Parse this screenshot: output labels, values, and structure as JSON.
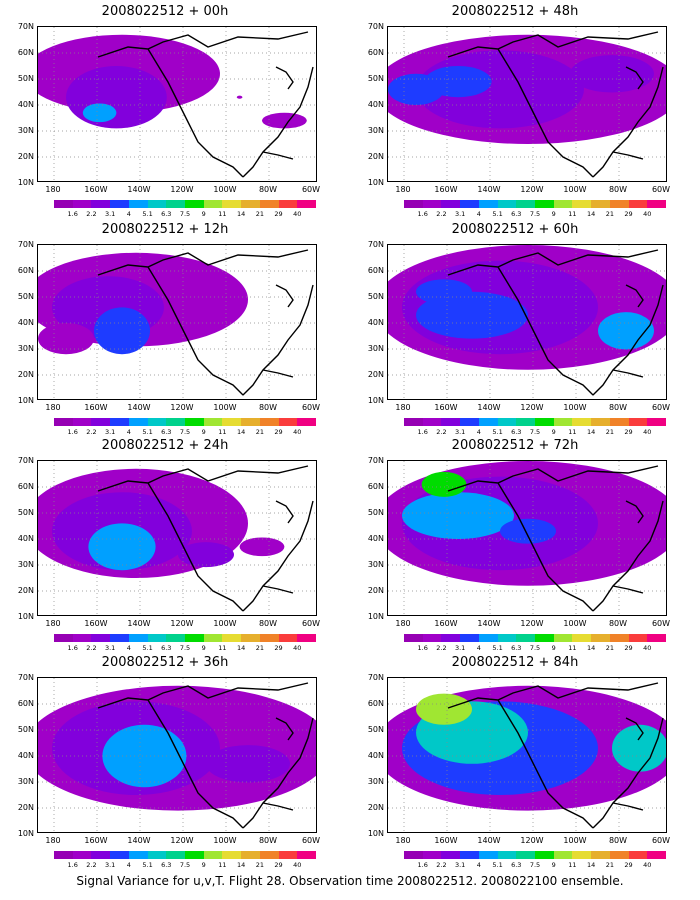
{
  "panels": [
    {
      "title": "2008022512 + 00h"
    },
    {
      "title": "2008022512 + 48h"
    },
    {
      "title": "2008022512 + 12h"
    },
    {
      "title": "2008022512 + 60h"
    },
    {
      "title": "2008022512 + 24h"
    },
    {
      "title": "2008022512 + 72h"
    },
    {
      "title": "2008022512 + 36h"
    },
    {
      "title": "2008022512 + 84h"
    }
  ],
  "lat_labels": [
    "70N",
    "60N",
    "50N",
    "40N",
    "30N",
    "20N",
    "10N"
  ],
  "lon_labels": [
    "180",
    "160W",
    "140W",
    "120W",
    "100W",
    "80W",
    "60W"
  ],
  "colorbar": {
    "labels": [
      "1.6",
      "2.2",
      "3.1",
      "4",
      "5.1",
      "6.3",
      "7.5",
      "9",
      "11",
      "14",
      "21",
      "29",
      "40"
    ],
    "colors": [
      "#a000c8",
      "#8200dc",
      "#1e3cff",
      "#00a0ff",
      "#00c8c8",
      "#00d28c",
      "#00dc00",
      "#a0e632",
      "#e6dc32",
      "#e6af2d",
      "#f08228",
      "#fa3c3c",
      "#f00082"
    ]
  },
  "caption": "Signal Variance for u,v,T. Flight 28. Observation time 2008022512. 2008022100 ensemble."
}
